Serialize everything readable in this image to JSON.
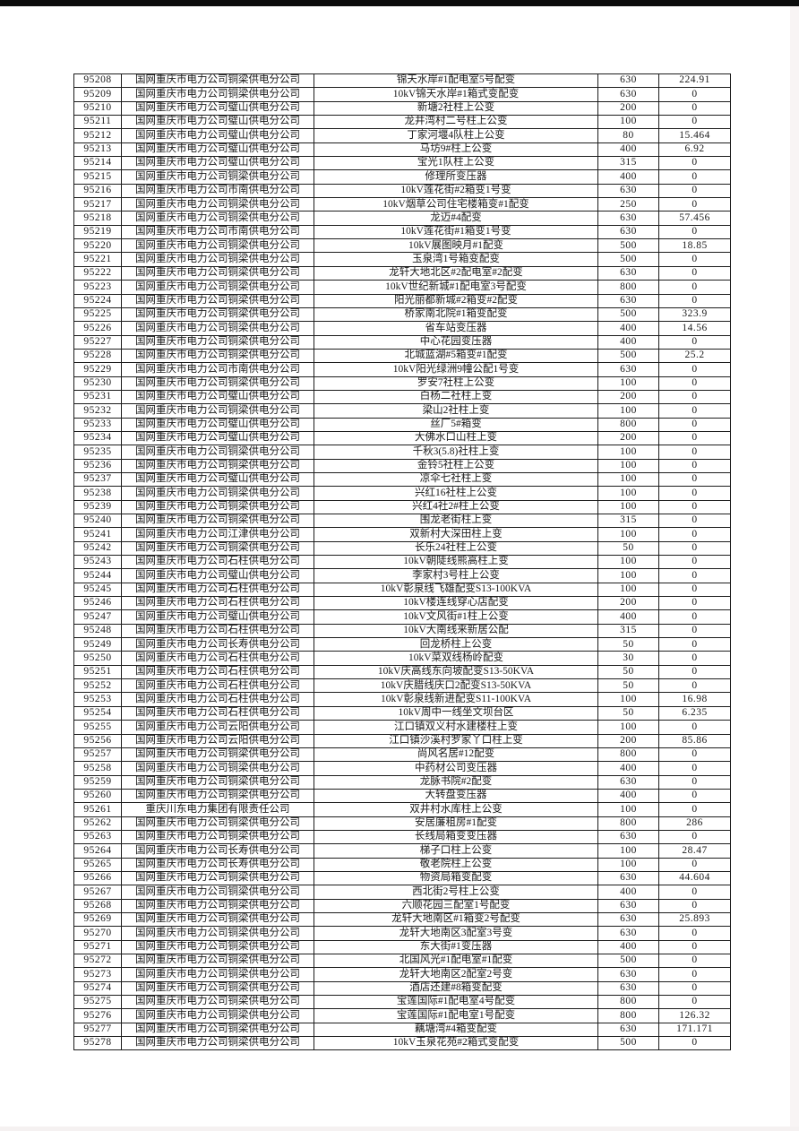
{
  "page": {
    "type": "scanned-report-table-page"
  },
  "table": {
    "columns": [
      "id",
      "company",
      "device_name",
      "capacity",
      "value"
    ],
    "rows": [
      [
        "95208",
        "国网重庆市电力公司铜梁供电分公司",
        "锦天水岸#1配电室5号配变",
        "630",
        "224.91"
      ],
      [
        "95209",
        "国网重庆市电力公司铜梁供电分公司",
        "10kV锦天水岸#1箱式变配变",
        "630",
        "0"
      ],
      [
        "95210",
        "国网重庆市电力公司璧山供电分公司",
        "新塘2社柱上公变",
        "200",
        "0"
      ],
      [
        "95211",
        "国网重庆市电力公司璧山供电分公司",
        "龙井湾村二号柱上公变",
        "100",
        "0"
      ],
      [
        "95212",
        "国网重庆市电力公司璧山供电分公司",
        "丁家河堰4队柱上公变",
        "80",
        "15.464"
      ],
      [
        "95213",
        "国网重庆市电力公司璧山供电分公司",
        "马坊9#柱上公变",
        "400",
        "6.92"
      ],
      [
        "95214",
        "国网重庆市电力公司璧山供电分公司",
        "宝光1队柱上公变",
        "315",
        "0"
      ],
      [
        "95215",
        "国网重庆市电力公司铜梁供电分公司",
        "修理所变压器",
        "400",
        "0"
      ],
      [
        "95216",
        "国网重庆市电力公司市南供电分公司",
        "10kV莲花街#2箱变1号变",
        "630",
        "0"
      ],
      [
        "95217",
        "国网重庆市电力公司铜梁供电分公司",
        "10kV烟草公司住宅楼箱变#1配变",
        "250",
        "0"
      ],
      [
        "95218",
        "国网重庆市电力公司铜梁供电分公司",
        "龙迈#4配变",
        "630",
        "57.456"
      ],
      [
        "95219",
        "国网重庆市电力公司市南供电分公司",
        "10kV莲花街#1箱变1号变",
        "630",
        "0"
      ],
      [
        "95220",
        "国网重庆市电力公司铜梁供电分公司",
        "10kV展图映月#1配变",
        "500",
        "18.85"
      ],
      [
        "95221",
        "国网重庆市电力公司铜梁供电分公司",
        "玉泉湾1号箱变配变",
        "500",
        "0"
      ],
      [
        "95222",
        "国网重庆市电力公司铜梁供电分公司",
        "龙轩大地北区#2配电室#2配变",
        "630",
        "0"
      ],
      [
        "95223",
        "国网重庆市电力公司铜梁供电分公司",
        "10kV世纪新城#1配电室3号配变",
        "800",
        "0"
      ],
      [
        "95224",
        "国网重庆市电力公司铜梁供电分公司",
        "阳光丽都新城#2箱变#2配变",
        "630",
        "0"
      ],
      [
        "95225",
        "国网重庆市电力公司铜梁供电分公司",
        "桥家南北院#1箱变配变",
        "500",
        "323.9"
      ],
      [
        "95226",
        "国网重庆市电力公司铜梁供电分公司",
        "省车站变压器",
        "400",
        "14.56"
      ],
      [
        "95227",
        "国网重庆市电力公司铜梁供电分公司",
        "中心花园变压器",
        "400",
        "0"
      ],
      [
        "95228",
        "国网重庆市电力公司铜梁供电分公司",
        "北城蓝湖#5箱变#1配变",
        "500",
        "25.2"
      ],
      [
        "95229",
        "国网重庆市电力公司市南供电分公司",
        "10kV阳光绿洲9幢公配1号变",
        "630",
        "0"
      ],
      [
        "95230",
        "国网重庆市电力公司铜梁供电分公司",
        "罗安7社柱上公变",
        "100",
        "0"
      ],
      [
        "95231",
        "国网重庆市电力公司璧山供电分公司",
        "白杨二社柱上变",
        "200",
        "0"
      ],
      [
        "95232",
        "国网重庆市电力公司铜梁供电分公司",
        "梁山2社柱上变",
        "100",
        "0"
      ],
      [
        "95233",
        "国网重庆市电力公司璧山供电分公司",
        "丝厂5#箱变",
        "800",
        "0"
      ],
      [
        "95234",
        "国网重庆市电力公司璧山供电分公司",
        "大佛水口山柱上变",
        "200",
        "0"
      ],
      [
        "95235",
        "国网重庆市电力公司铜梁供电分公司",
        "千秋3(5.8)社柱上变",
        "100",
        "0"
      ],
      [
        "95236",
        "国网重庆市电力公司铜梁供电分公司",
        "金铃5社柱上公变",
        "100",
        "0"
      ],
      [
        "95237",
        "国网重庆市电力公司璧山供电分公司",
        "凉伞七社柱上变",
        "100",
        "0"
      ],
      [
        "95238",
        "国网重庆市电力公司铜梁供电分公司",
        "兴红16社柱上公变",
        "100",
        "0"
      ],
      [
        "95239",
        "国网重庆市电力公司铜梁供电分公司",
        "兴红4社2#柱上公变",
        "100",
        "0"
      ],
      [
        "95240",
        "国网重庆市电力公司铜梁供电分公司",
        "围龙老街柱上变",
        "315",
        "0"
      ],
      [
        "95241",
        "国网重庆市电力公司江津供电分公司",
        "双新村大深田柱上变",
        "100",
        "0"
      ],
      [
        "95242",
        "国网重庆市电力公司铜梁供电分公司",
        "长乐24社柱上公变",
        "50",
        "0"
      ],
      [
        "95243",
        "国网重庆市电力公司石柱供电分公司",
        "10kV朝陡线熊高柱上变",
        "100",
        "0"
      ],
      [
        "95244",
        "国网重庆市电力公司璧山供电分公司",
        "李家村3号柱上公变",
        "100",
        "0"
      ],
      [
        "95245",
        "国网重庆市电力公司石柱供电分公司",
        "10kV彰泉线飞雄配变S13-100KVA",
        "100",
        "0"
      ],
      [
        "95246",
        "国网重庆市电力公司石柱供电分公司",
        "10kV楼连线穿心店配变",
        "200",
        "0"
      ],
      [
        "95247",
        "国网重庆市电力公司璧山供电分公司",
        "10kV文风街#1柱上公变",
        "400",
        "0"
      ],
      [
        "95248",
        "国网重庆市电力公司石柱供电分公司",
        "10kV大南线来新居公配",
        "315",
        "0"
      ],
      [
        "95249",
        "国网重庆市电力公司长寿供电分公司",
        "回龙桥柱上公变",
        "50",
        "0"
      ],
      [
        "95250",
        "国网重庆市电力公司石柱供电分公司",
        "10kV菜双线杨岭配变",
        "30",
        "0"
      ],
      [
        "95251",
        "国网重庆市电力公司石柱供电分公司",
        "10kV庆高线东向坡配变S13-50KVA",
        "50",
        "0"
      ],
      [
        "95252",
        "国网重庆市电力公司石柱供电分公司",
        "10kV庆腊线庆口2配变S13-50KVA",
        "50",
        "0"
      ],
      [
        "95253",
        "国网重庆市电力公司石柱供电分公司",
        "10kV彰泉线新进配变S11-100KVA",
        "100",
        "16.98"
      ],
      [
        "95254",
        "国网重庆市电力公司石柱供电分公司",
        "10kV周中一线坐文坝台区",
        "50",
        "6.235"
      ],
      [
        "95255",
        "国网重庆市电力公司云阳供电分公司",
        "江口镇双义村水建楼柱上变",
        "100",
        "0"
      ],
      [
        "95256",
        "国网重庆市电力公司云阳供电分公司",
        "江口镇沙溪村罗家丫口柱上变",
        "200",
        "85.86"
      ],
      [
        "95257",
        "国网重庆市电力公司铜梁供电分公司",
        "尚风名居#12配变",
        "800",
        "0"
      ],
      [
        "95258",
        "国网重庆市电力公司铜梁供电分公司",
        "中药材公司变压器",
        "400",
        "0"
      ],
      [
        "95259",
        "国网重庆市电力公司铜梁供电分公司",
        "龙脉书院#2配变",
        "630",
        "0"
      ],
      [
        "95260",
        "国网重庆市电力公司铜梁供电分公司",
        "大转盘变压器",
        "400",
        "0"
      ],
      [
        "95261",
        "重庆川东电力集团有限责任公司",
        "双井村水库柱上公变",
        "100",
        "0"
      ],
      [
        "95262",
        "国网重庆市电力公司铜梁供电分公司",
        "安居廉租房#1配变",
        "800",
        "286"
      ],
      [
        "95263",
        "国网重庆市电力公司铜梁供电分公司",
        "长线局箱变变压器",
        "630",
        "0"
      ],
      [
        "95264",
        "国网重庆市电力公司长寿供电分公司",
        "梯子口柱上公变",
        "100",
        "28.47"
      ],
      [
        "95265",
        "国网重庆市电力公司长寿供电分公司",
        "敬老院柱上公变",
        "100",
        "0"
      ],
      [
        "95266",
        "国网重庆市电力公司铜梁供电分公司",
        "物资局箱变配变",
        "630",
        "44.604"
      ],
      [
        "95267",
        "国网重庆市电力公司铜梁供电分公司",
        "西北街2号柱上公变",
        "400",
        "0"
      ],
      [
        "95268",
        "国网重庆市电力公司铜梁供电分公司",
        "六顺花园三配室1号配变",
        "630",
        "0"
      ],
      [
        "95269",
        "国网重庆市电力公司铜梁供电分公司",
        "龙轩大地南区#1箱变2号配变",
        "630",
        "25.893"
      ],
      [
        "95270",
        "国网重庆市电力公司铜梁供电分公司",
        "龙轩大地南区3配室3号变",
        "630",
        "0"
      ],
      [
        "95271",
        "国网重庆市电力公司铜梁供电分公司",
        "东大街#1变压器",
        "400",
        "0"
      ],
      [
        "95272",
        "国网重庆市电力公司铜梁供电分公司",
        "北国风光#1配电室#1配变",
        "500",
        "0"
      ],
      [
        "95273",
        "国网重庆市电力公司铜梁供电分公司",
        "龙轩大地南区2配室2号变",
        "630",
        "0"
      ],
      [
        "95274",
        "国网重庆市电力公司铜梁供电分公司",
        "酒店还建#8箱变配变",
        "630",
        "0"
      ],
      [
        "95275",
        "国网重庆市电力公司铜梁供电分公司",
        "宝莲国际#1配电室4号配变",
        "800",
        "0"
      ],
      [
        "95276",
        "国网重庆市电力公司铜梁供电分公司",
        "宝莲国际#1配电室1号配变",
        "800",
        "126.32"
      ],
      [
        "95277",
        "国网重庆市电力公司铜梁供电分公司",
        "藕塘湾#4箱变配变",
        "630",
        "171.171"
      ],
      [
        "95278",
        "国网重庆市电力公司铜梁供电分公司",
        "10kV玉泉花苑#2箱式变配变",
        "500",
        "0"
      ]
    ]
  },
  "colors": {
    "page_background": "#ffffff",
    "top_bar": "#0c0c0c",
    "table_border": "#1c1c1c",
    "text": "#1a1a1a"
  }
}
